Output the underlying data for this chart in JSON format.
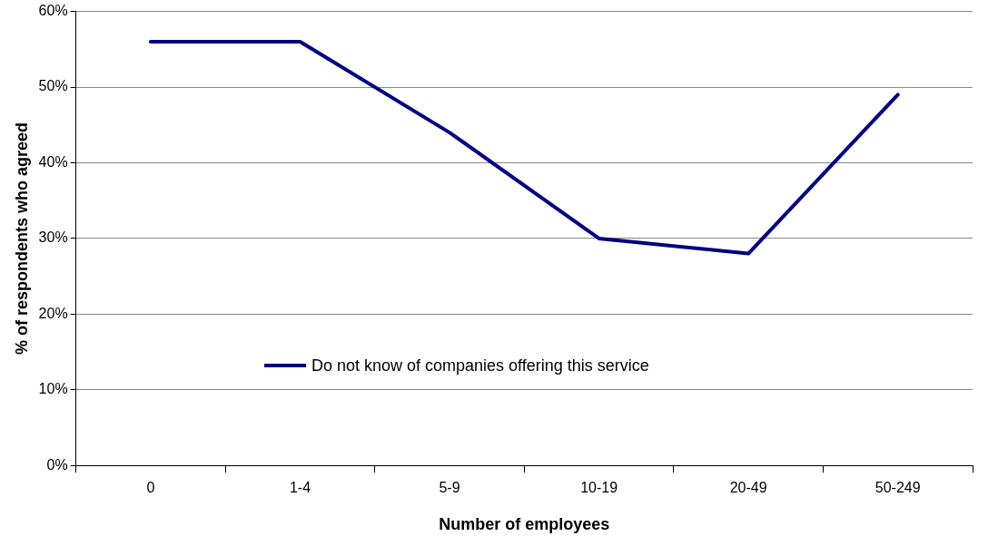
{
  "chart_data": {
    "type": "line",
    "xlabel": "Number of employees",
    "ylabel": "% of respondents who agreed",
    "categories": [
      "0",
      "1-4",
      "5-9",
      "10-19",
      "20-49",
      "50-249"
    ],
    "series": [
      {
        "name": "Do not know of companies offering this service",
        "color": "#000080",
        "values": [
          56,
          56,
          44,
          30,
          28,
          49
        ]
      }
    ],
    "ylim": [
      0,
      60
    ],
    "yticks": [
      {
        "value": 0,
        "label": "0%"
      },
      {
        "value": 10,
        "label": "10%"
      },
      {
        "value": 20,
        "label": "20%"
      },
      {
        "value": 30,
        "label": "30%"
      },
      {
        "value": 40,
        "label": "40%"
      },
      {
        "value": 50,
        "label": "50%"
      },
      {
        "value": 60,
        "label": "60%"
      }
    ],
    "grid": "y",
    "legend": "bottom",
    "marker": "none",
    "line_style": "solid"
  }
}
